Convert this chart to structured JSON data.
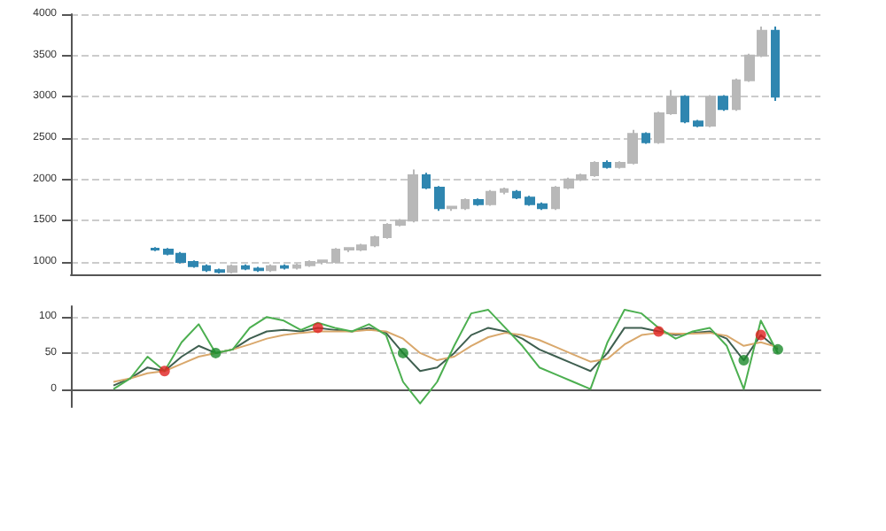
{
  "chart_data": [
    {
      "type": "candlestick",
      "colors": [
        null,
        null,
        null,
        null,
        null,
        null,
        "#2f86b0",
        "#2f86b0",
        "#2f86b0",
        "#2f86b0",
        "#2f86b0",
        "#2f86b0",
        "#b8b8b8",
        "#2f86b0",
        "#2f86b0",
        "#b8b8b8",
        "#2f86b0",
        "#b8b8b8",
        "#b8b8b8",
        "#b8b8b8",
        "#b8b8b8",
        "#b8b8b8",
        "#b8b8b8",
        "#b8b8b8",
        "#b8b8b8",
        "#b8b8b8",
        "#b8b8b8",
        "#2f86b0",
        "#2f86b0",
        "#b8b8b8",
        "#b8b8b8",
        "#2f86b0",
        "#b8b8b8",
        "#b8b8b8",
        "#2f86b0",
        "#2f86b0",
        "#2f86b0",
        "#b8b8b8",
        "#b8b8b8",
        "#b8b8b8",
        "#b8b8b8",
        "#2f86b0",
        "#b8b8b8",
        "#b8b8b8",
        "#2f86b0",
        "#b8b8b8",
        "#b8b8b8",
        "#2f86b0",
        "#2f86b0",
        "#b8b8b8",
        "#2f86b0",
        "#b8b8b8",
        "#b8b8b8",
        "#b8b8b8",
        "#2f86b0",
        null,
        null,
        null
      ],
      "categories": [
        null,
        null,
        null,
        null,
        null,
        null,
        null,
        null,
        null,
        null,
        null,
        null,
        null,
        null,
        null,
        null,
        null,
        null,
        null,
        null,
        null,
        null,
        null,
        null,
        null,
        null,
        null,
        null,
        null,
        null,
        null,
        null,
        null,
        null,
        null,
        null,
        null,
        null,
        null,
        null,
        null,
        null,
        null,
        null,
        null,
        null,
        null,
        null,
        null,
        null,
        null,
        null,
        null,
        null,
        null,
        null,
        null,
        null
      ],
      "ohlc": [
        null,
        null,
        null,
        null,
        null,
        null,
        [
          1160,
          1180,
          1130,
          1150
        ],
        [
          1150,
          1170,
          1080,
          1100
        ],
        [
          1100,
          1120,
          980,
          1000
        ],
        [
          1000,
          1020,
          930,
          950
        ],
        [
          950,
          970,
          880,
          900
        ],
        [
          900,
          920,
          860,
          880
        ],
        [
          880,
          970,
          860,
          950
        ],
        [
          950,
          970,
          900,
          920
        ],
        [
          920,
          940,
          880,
          900
        ],
        [
          900,
          970,
          880,
          950
        ],
        [
          950,
          970,
          910,
          930
        ],
        [
          930,
          980,
          910,
          960
        ],
        [
          960,
          1020,
          940,
          1000
        ],
        [
          1000,
          1030,
          970,
          1020
        ],
        [
          1000,
          1170,
          980,
          1150
        ],
        [
          1150,
          1180,
          1120,
          1170
        ],
        [
          1150,
          1220,
          1130,
          1200
        ],
        [
          1200,
          1320,
          1180,
          1300
        ],
        [
          1300,
          1470,
          1280,
          1450
        ],
        [
          1450,
          1520,
          1430,
          1500
        ],
        [
          1500,
          2120,
          1480,
          2050
        ],
        [
          2050,
          2080,
          1880,
          1900
        ],
        [
          1900,
          1920,
          1620,
          1650
        ],
        [
          1650,
          1680,
          1620,
          1670
        ],
        [
          1650,
          1770,
          1630,
          1750
        ],
        [
          1750,
          1770,
          1680,
          1700
        ],
        [
          1700,
          1870,
          1680,
          1850
        ],
        [
          1850,
          1900,
          1820,
          1880
        ],
        [
          1850,
          1870,
          1760,
          1780
        ],
        [
          1780,
          1800,
          1680,
          1700
        ],
        [
          1700,
          1720,
          1630,
          1650
        ],
        [
          1650,
          1920,
          1630,
          1900
        ],
        [
          1900,
          2020,
          1880,
          2000
        ],
        [
          2000,
          2070,
          1980,
          2050
        ],
        [
          2050,
          2220,
          2030,
          2200
        ],
        [
          2200,
          2230,
          2130,
          2150
        ],
        [
          2150,
          2220,
          2130,
          2200
        ],
        [
          2200,
          2600,
          2180,
          2550
        ],
        [
          2550,
          2570,
          2430,
          2450
        ],
        [
          2450,
          2820,
          2430,
          2800
        ],
        [
          2800,
          3080,
          2780,
          3000
        ],
        [
          3000,
          3020,
          2680,
          2700
        ],
        [
          2700,
          2720,
          2630,
          2650
        ],
        [
          2650,
          3020,
          2630,
          3000
        ],
        [
          3000,
          3020,
          2830,
          2850
        ],
        [
          2850,
          3220,
          2830,
          3200
        ],
        [
          3200,
          3520,
          3180,
          3500
        ],
        [
          3500,
          3850,
          3480,
          3800
        ],
        [
          3800,
          3850,
          2950,
          3000
        ],
        null,
        null,
        null
      ],
      "ylim": [
        850,
        4000
      ],
      "yticks": [
        1000,
        1500,
        2000,
        2500,
        3000,
        3500,
        4000
      ],
      "grid": true,
      "tick_labels": "y"
    },
    {
      "type": "line",
      "categories": [
        null,
        null,
        null,
        null,
        null,
        null,
        null,
        null,
        null,
        null,
        null,
        null,
        null,
        null,
        null,
        null,
        null,
        null,
        null,
        null,
        null,
        null,
        null,
        null,
        null,
        null,
        null,
        null,
        null,
        null,
        null,
        null,
        null,
        null,
        null,
        null,
        null,
        null,
        null,
        null,
        null,
        null,
        null,
        null
      ],
      "series": [
        {
          "color": "#3f5f50",
          "values": [
            null,
            null,
            5,
            15,
            30,
            25,
            45,
            60,
            50,
            55,
            70,
            80,
            82,
            80,
            85,
            82,
            80,
            85,
            78,
            50,
            25,
            30,
            50,
            75,
            85,
            80,
            70,
            55,
            45,
            35,
            25,
            50,
            85,
            85,
            80,
            75,
            78,
            80,
            70,
            40,
            75,
            55,
            null,
            null
          ]
        },
        {
          "color": "#d9a86c",
          "values": [
            null,
            null,
            10,
            15,
            22,
            25,
            35,
            45,
            50,
            55,
            62,
            70,
            75,
            78,
            80,
            80,
            80,
            82,
            80,
            70,
            50,
            40,
            45,
            60,
            72,
            78,
            75,
            68,
            58,
            48,
            38,
            42,
            62,
            75,
            78,
            77,
            77,
            78,
            74,
            60,
            65,
            58,
            null,
            null
          ]
        },
        {
          "color": "#4caf50",
          "values": [
            null,
            null,
            0,
            15,
            45,
            25,
            65,
            90,
            50,
            55,
            85,
            100,
            95,
            82,
            92,
            85,
            80,
            90,
            75,
            10,
            -20,
            10,
            60,
            105,
            110,
            85,
            60,
            30,
            20,
            10,
            0,
            65,
            110,
            105,
            85,
            70,
            80,
            85,
            60,
            0,
            95,
            50,
            null,
            null
          ]
        },
        {
          "type": "scatter",
          "color": "#e02020",
          "values": [
            null,
            null,
            null,
            null,
            null,
            25,
            null,
            null,
            null,
            null,
            null,
            null,
            null,
            null,
            85,
            null,
            null,
            null,
            null,
            null,
            null,
            null,
            null,
            null,
            null,
            null,
            null,
            null,
            null,
            null,
            null,
            null,
            null,
            null,
            80,
            null,
            null,
            null,
            null,
            null,
            75,
            null,
            null,
            null
          ]
        },
        {
          "type": "scatter",
          "color": "#1a8a2a",
          "values": [
            null,
            null,
            null,
            null,
            null,
            null,
            null,
            null,
            50,
            null,
            null,
            null,
            null,
            null,
            null,
            null,
            null,
            null,
            null,
            50,
            null,
            null,
            null,
            null,
            null,
            null,
            null,
            null,
            null,
            null,
            null,
            null,
            null,
            null,
            null,
            null,
            null,
            null,
            null,
            40,
            null,
            55,
            null,
            null
          ]
        }
      ],
      "ylim": [
        -25,
        115
      ],
      "yticks": [
        0,
        50,
        100
      ],
      "grid": true,
      "tick_labels": "y"
    }
  ]
}
